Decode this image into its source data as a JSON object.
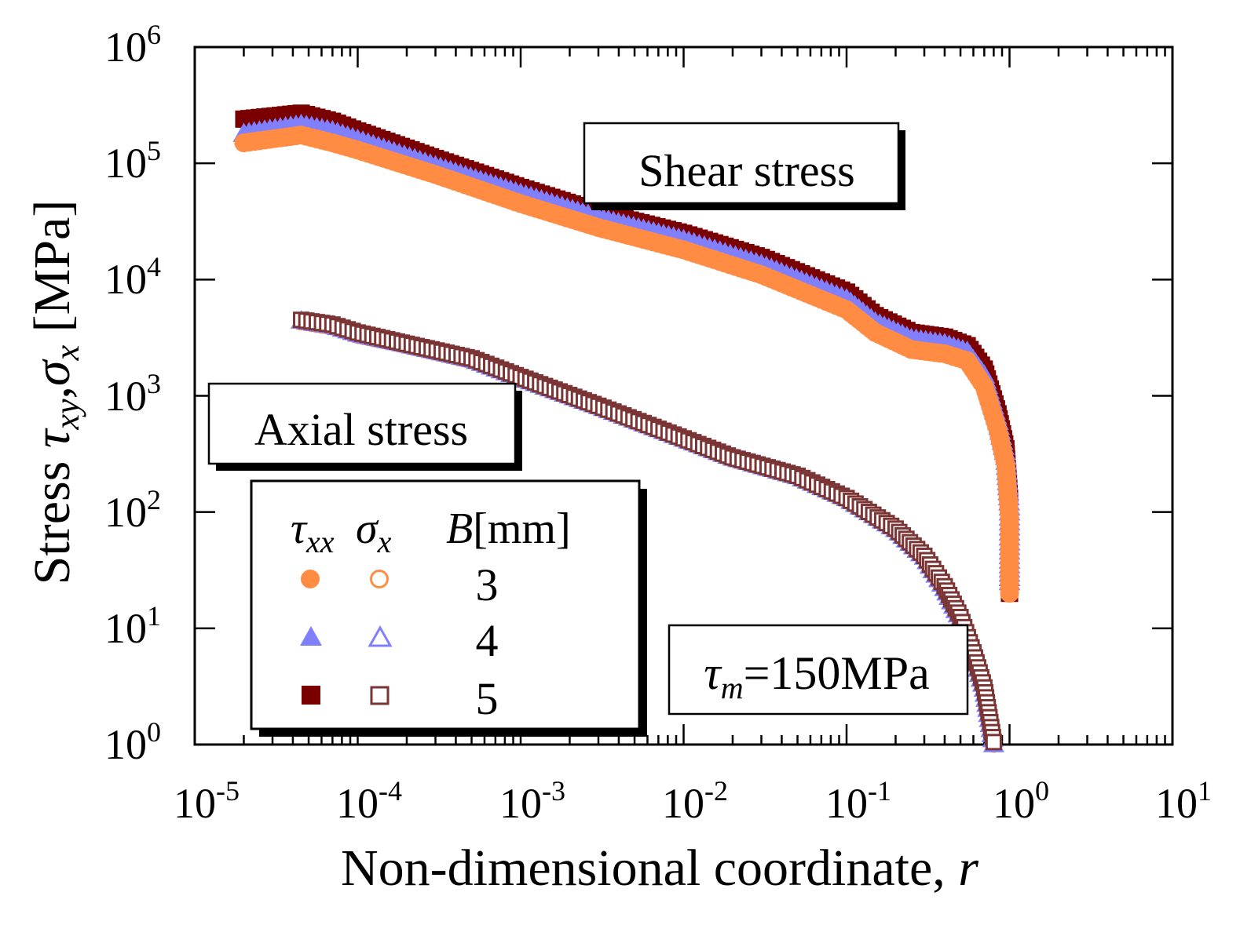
{
  "chart_data": {
    "type": "scatter",
    "xscale": "log",
    "yscale": "log",
    "xlim": [
      1e-05,
      10
    ],
    "ylim": [
      1,
      1000000
    ],
    "xlabel": "Non-dimensional coordinate, ",
    "xlabel_var": "r",
    "ylabel_prefix": "Stress ",
    "ylabel_tau": "τ",
    "ylabel_tau_sub": "xy",
    "ylabel_comma": ",",
    "ylabel_sigma": "σ",
    "ylabel_sigma_sub": "x",
    "ylabel_unit": " [MPa]",
    "x_tick_labels": [
      {
        "base": "10",
        "exp": "-5"
      },
      {
        "base": "10",
        "exp": "-4"
      },
      {
        "base": "10",
        "exp": "-3"
      },
      {
        "base": "10",
        "exp": "-2"
      },
      {
        "base": "10",
        "exp": "-1"
      },
      {
        "base": "10",
        "exp": "0"
      },
      {
        "base": "10",
        "exp": "1"
      }
    ],
    "y_tick_labels": [
      {
        "base": "10",
        "exp": "0"
      },
      {
        "base": "10",
        "exp": "1"
      },
      {
        "base": "10",
        "exp": "2"
      },
      {
        "base": "10",
        "exp": "3"
      },
      {
        "base": "10",
        "exp": "4"
      },
      {
        "base": "10",
        "exp": "5"
      },
      {
        "base": "10",
        "exp": "6"
      }
    ],
    "annotations": {
      "shear": "Shear stress",
      "axial": "Axial stress",
      "tau_m_symbol": "τ",
      "tau_m_sub": "m",
      "tau_m_value": "=150MPa"
    },
    "legend": {
      "position": "bottom-left",
      "col1_symbol": "τ",
      "col1_sub": "xx",
      "col2_symbol": "σ",
      "col2_sub": "x",
      "col3_var": "B",
      "col3_unit": "[mm]",
      "entries": [
        "3",
        "4",
        "5"
      ]
    },
    "colors": {
      "B3": "#ff8c42",
      "B4": "#8080ff",
      "B5": "#7a0000",
      "axial_B5": "#7b3535"
    },
    "series": [
      {
        "name": "tau_xy B=3",
        "marker": "circle",
        "filled": true,
        "color": "#ff8c42",
        "x": [
          2e-05,
          4.5e-05,
          7e-05,
          0.0001,
          0.0003,
          0.001,
          0.003,
          0.01,
          0.03,
          0.1,
          0.15,
          0.25,
          0.4,
          0.55,
          0.7,
          0.85,
          0.95,
          1.0,
          1.0,
          1.0,
          1.0
        ],
        "y": [
          150000,
          175000,
          150000,
          130000,
          80000,
          45000,
          28000,
          18000,
          11000,
          5500,
          3500,
          2500,
          2300,
          2000,
          1200,
          500,
          250,
          90,
          45,
          30,
          20
        ]
      },
      {
        "name": "tau_xy B=4",
        "marker": "triangle",
        "filled": true,
        "color": "#8080ff",
        "x": [
          2e-05,
          4.5e-05,
          7e-05,
          0.0001,
          0.0003,
          0.001,
          0.003,
          0.01,
          0.03,
          0.1,
          0.15,
          0.25,
          0.4,
          0.55,
          0.7,
          0.85,
          0.95,
          1.0,
          1.0,
          1.0,
          1.0
        ],
        "y": [
          180000,
          215000,
          190000,
          160000,
          95000,
          55000,
          34000,
          22000,
          13500,
          6800,
          4300,
          3100,
          2800,
          2400,
          1500,
          600,
          300,
          110,
          55,
          35,
          25
        ]
      },
      {
        "name": "tau_xy B=5",
        "marker": "square",
        "filled": true,
        "color": "#7a0000",
        "x": [
          2e-05,
          4.5e-05,
          7e-05,
          0.0001,
          0.0003,
          0.001,
          0.003,
          0.01,
          0.03,
          0.1,
          0.15,
          0.25,
          0.4,
          0.55,
          0.7,
          0.85,
          0.95,
          1.0,
          1.0,
          1.0,
          1.0
        ],
        "y": [
          240000,
          270000,
          230000,
          190000,
          110000,
          62000,
          38000,
          25000,
          15500,
          7800,
          4900,
          3500,
          3200,
          2700,
          1700,
          700,
          350,
          130,
          70,
          35,
          20
        ]
      },
      {
        "name": "sigma_x B=3",
        "marker": "circle",
        "filled": false,
        "color": "#ff8c42",
        "x": [
          4.5e-05,
          7e-05,
          0.0001,
          0.0002,
          0.0005,
          0.001,
          0.003,
          0.01,
          0.02,
          0.05,
          0.1,
          0.2,
          0.3,
          0.4,
          0.5,
          0.6,
          0.7,
          0.8
        ],
        "y": [
          4300,
          3900,
          3300,
          2700,
          2000,
          1400,
          800,
          420,
          290,
          200,
          130,
          70,
          40,
          22,
          12,
          6,
          3,
          1
        ]
      },
      {
        "name": "sigma_x B=4",
        "marker": "triangle",
        "filled": false,
        "color": "#8080ff",
        "x": [
          4.5e-05,
          7e-05,
          0.0001,
          0.0002,
          0.0005,
          0.001,
          0.003,
          0.01,
          0.02,
          0.05,
          0.1,
          0.2,
          0.3,
          0.4,
          0.5,
          0.6,
          0.7,
          0.8
        ],
        "y": [
          4400,
          4000,
          3400,
          2750,
          2050,
          1420,
          810,
          425,
          292,
          202,
          131,
          71,
          41,
          22,
          12,
          6,
          3,
          1
        ]
      },
      {
        "name": "sigma_x B=5",
        "marker": "square",
        "filled": false,
        "color": "#7b3535",
        "x": [
          4.5e-05,
          7e-05,
          0.0001,
          0.0002,
          0.0005,
          0.001,
          0.003,
          0.01,
          0.02,
          0.05,
          0.1,
          0.2,
          0.3,
          0.4,
          0.5,
          0.6,
          0.7,
          0.8
        ],
        "y": [
          4500,
          4100,
          3500,
          2800,
          2100,
          1450,
          820,
          430,
          295,
          205,
          132,
          72,
          42,
          23,
          12.5,
          6.2,
          3.1,
          1.05
        ]
      }
    ]
  }
}
